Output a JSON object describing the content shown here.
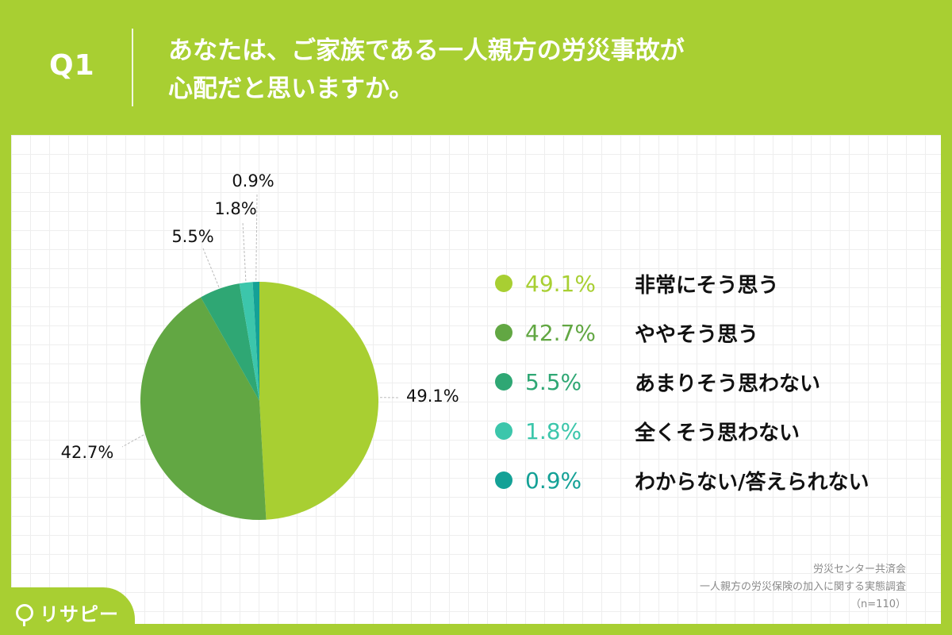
{
  "header": {
    "q_label": "Q1",
    "title_line1": "あなたは、ご家族である一人親方の労災事故が",
    "title_line2": "心配だと思いますか。"
  },
  "chart_data": {
    "type": "pie",
    "title": "",
    "slices": [
      {
        "label": "非常にそう思う",
        "value": 49.1,
        "value_text": "49.1%",
        "color": "#a8cf32"
      },
      {
        "label": "ややそう思う",
        "value": 42.7,
        "value_text": "42.7%",
        "color": "#62a743"
      },
      {
        "label": "あまりそう思わない",
        "value": 5.5,
        "value_text": "5.5%",
        "color": "#2fa774"
      },
      {
        "label": "全くそう思わない",
        "value": 1.8,
        "value_text": "1.8%",
        "color": "#3cc6ab"
      },
      {
        "label": "わからない/答えられない",
        "value": 0.9,
        "value_text": "0.9%",
        "color": "#14a196"
      }
    ],
    "legend_placement": "right"
  },
  "source": {
    "org": "労災センター共済会",
    "survey": "一人親方の労災保険の加入に関する実態調査",
    "n": "（n=110）"
  },
  "brand": {
    "name": "リサピー"
  }
}
